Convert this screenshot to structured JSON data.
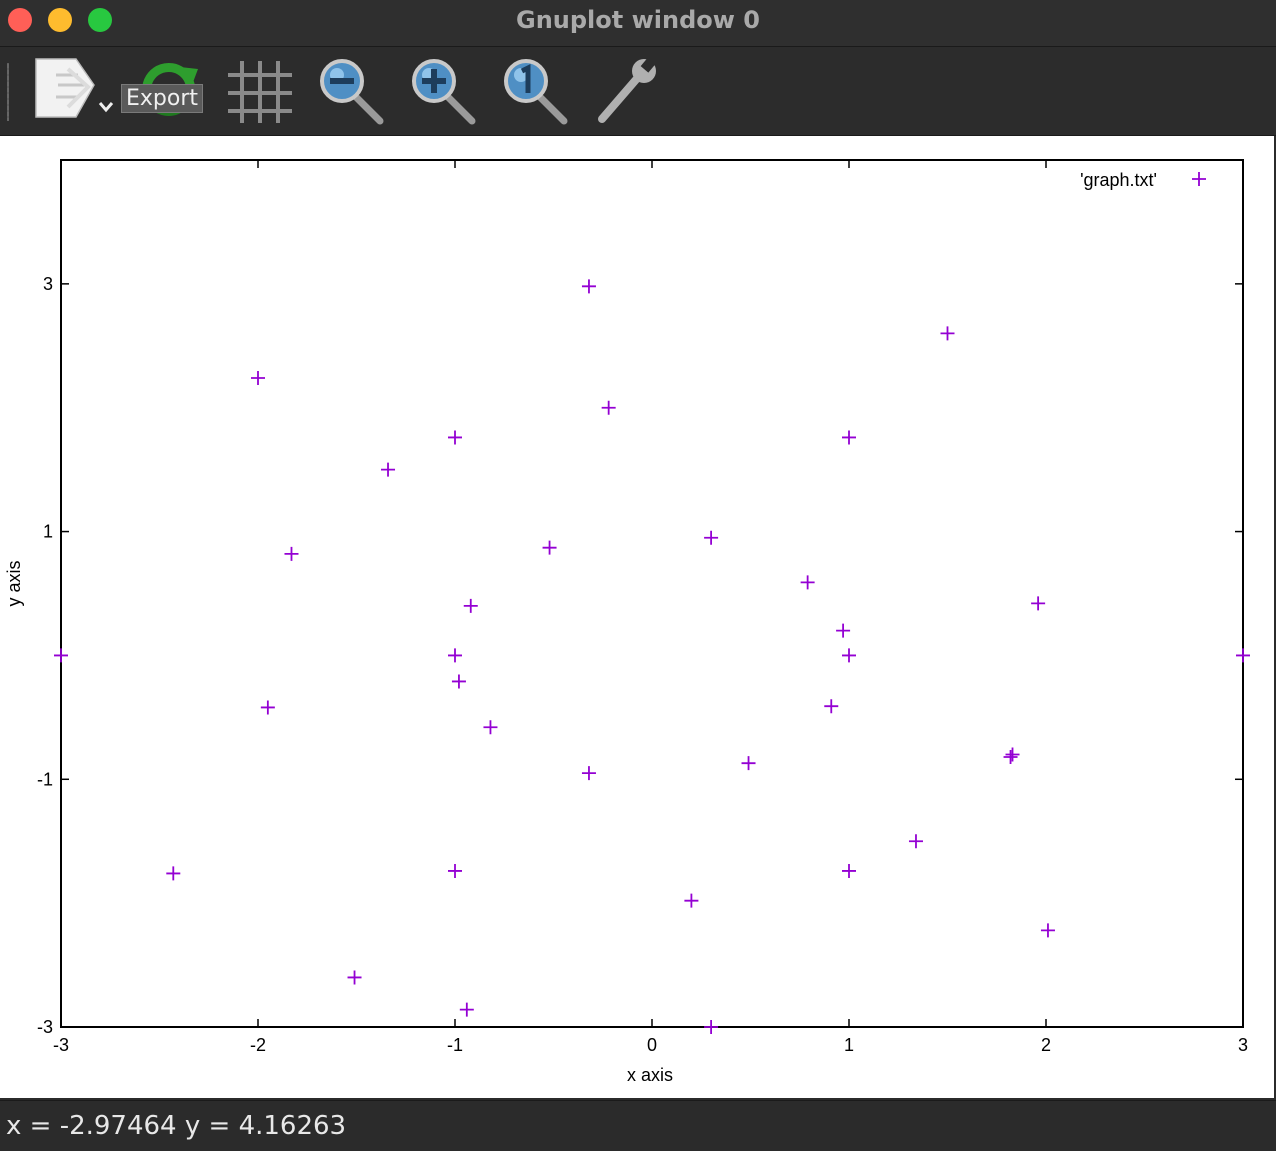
{
  "window": {
    "title": "Gnuplot window 0"
  },
  "toolbar": {
    "tooltip": "Export",
    "buttons": [
      {
        "name": "export-icon"
      },
      {
        "name": "replot-icon"
      },
      {
        "name": "grid-icon"
      },
      {
        "name": "zoom-out-icon"
      },
      {
        "name": "zoom-in-icon"
      },
      {
        "name": "zoom-reset-icon"
      },
      {
        "name": "settings-wrench-icon"
      }
    ]
  },
  "status": {
    "text": "x = -2.97464 y = 4.16263"
  },
  "colors": {
    "series": "#9400d3",
    "traffic_red": "#ff5f57",
    "traffic_yellow": "#febc2e",
    "traffic_green": "#28c840"
  },
  "chart_data": {
    "type": "scatter",
    "xlabel": "x axis",
    "ylabel": "y axis",
    "xlim": [
      -3,
      3
    ],
    "ylim": [
      -3,
      4
    ],
    "xticks": [
      "-3",
      "-2",
      "-1",
      "0",
      "1",
      "2",
      "3"
    ],
    "yticks": [
      "-3",
      "-1",
      "1",
      "3"
    ],
    "legend_position": "top-right",
    "series": [
      {
        "name": "'graph.txt'",
        "marker": "plus",
        "points": [
          [
            -3.0,
            0.0
          ],
          [
            -2.43,
            -1.76
          ],
          [
            -2.0,
            2.24
          ],
          [
            -1.95,
            -0.42
          ],
          [
            -1.83,
            0.82
          ],
          [
            -1.51,
            -2.6
          ],
          [
            -1.34,
            1.5
          ],
          [
            -1.0,
            1.76
          ],
          [
            -1.0,
            0.0
          ],
          [
            -0.98,
            -0.21
          ],
          [
            -1.0,
            -1.74
          ],
          [
            -0.92,
            0.4
          ],
          [
            -0.82,
            -0.58
          ],
          [
            -0.94,
            -2.86
          ],
          [
            -0.52,
            0.87
          ],
          [
            -0.32,
            2.98
          ],
          [
            -0.32,
            -0.95
          ],
          [
            -0.22,
            2.0
          ],
          [
            0.2,
            -1.98
          ],
          [
            0.3,
            0.95
          ],
          [
            0.3,
            -3.0
          ],
          [
            0.49,
            -0.87
          ],
          [
            0.79,
            0.59
          ],
          [
            0.91,
            -0.41
          ],
          [
            0.97,
            0.2
          ],
          [
            1.0,
            1.76
          ],
          [
            1.0,
            0.0
          ],
          [
            1.0,
            -1.74
          ],
          [
            1.34,
            -1.5
          ],
          [
            1.5,
            2.6
          ],
          [
            1.82,
            -0.82
          ],
          [
            1.83,
            -0.8
          ],
          [
            1.96,
            0.42
          ],
          [
            2.01,
            -2.22
          ],
          [
            3.0,
            0.0
          ]
        ]
      }
    ]
  }
}
